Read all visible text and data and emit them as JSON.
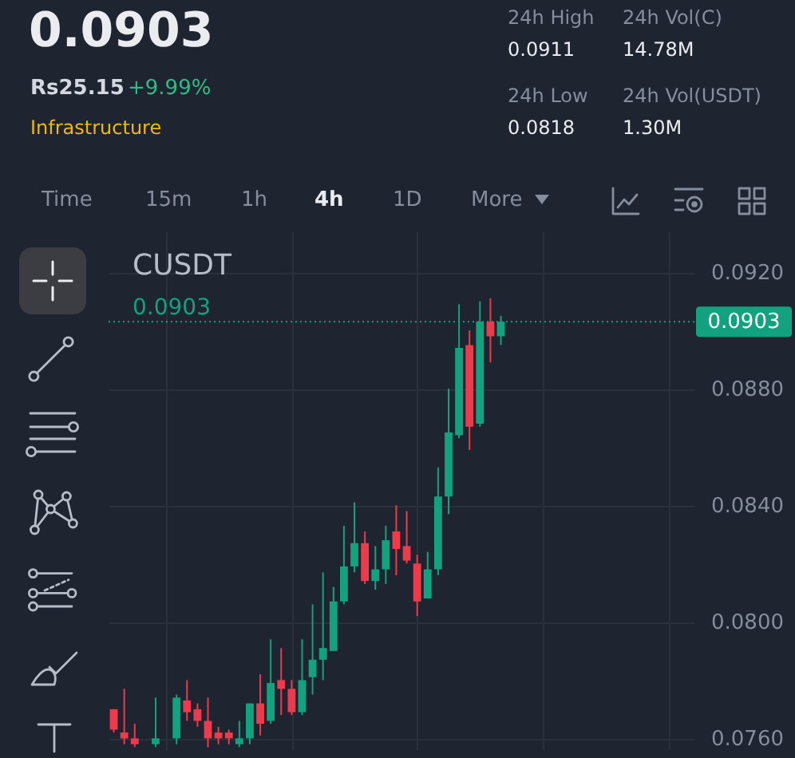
{
  "chart_data": [
    {
      "type": "other",
      "annotations": [
        "0.0903",
        "Rs25.15",
        "+9.99%",
        "Infrastructure",
        "24h High",
        "0.0911",
        "24h Vol(C)",
        "14.78M",
        "24h Low",
        "0.0818",
        "24h Vol(USDT)",
        "1.30M",
        "Time",
        "15m",
        "1h",
        "4h",
        "1D",
        "More"
      ]
    },
    {
      "type": "candlestick",
      "title": "CUSDT",
      "categories": [
        null,
        null,
        null,
        null,
        null,
        null,
        null,
        null,
        null,
        null,
        null,
        null,
        null,
        null,
        null,
        null,
        null,
        null,
        null,
        null,
        null,
        null,
        null,
        null,
        null,
        null,
        null,
        null,
        null,
        null,
        null,
        null,
        null,
        null,
        null,
        null,
        null,
        null,
        null,
        null,
        null,
        null,
        null,
        null,
        null,
        null,
        null,
        null,
        null,
        null,
        null,
        null,
        null,
        null,
        null,
        null
      ],
      "ohlc": [
        [
          0.077,
          0.077,
          0.0762,
          0.0763
        ],
        [
          0.0762,
          0.0777,
          0.0758,
          0.076
        ],
        [
          0.076,
          0.0765,
          0.0757,
          0.0758
        ],
        null,
        [
          0.0758,
          0.0774,
          0.0757,
          0.076
        ],
        null,
        [
          0.076,
          0.0775,
          0.0758,
          0.0774
        ],
        [
          0.0773,
          0.078,
          0.0766,
          0.0769
        ],
        [
          0.077,
          0.0772,
          0.0764,
          0.0766
        ],
        [
          0.0766,
          0.0774,
          0.0757,
          0.076
        ],
        [
          0.0762,
          0.0764,
          0.0758,
          0.076
        ],
        [
          0.0762,
          0.0763,
          0.0758,
          0.076
        ],
        [
          0.0758,
          0.0766,
          0.0757,
          0.076
        ],
        [
          0.076,
          0.0772,
          0.0758,
          0.0772
        ],
        [
          0.0772,
          0.0782,
          0.0761,
          0.0765
        ],
        [
          0.0766,
          0.0794,
          0.0765,
          0.0779
        ],
        [
          0.078,
          0.0791,
          0.0768,
          0.0777
        ],
        [
          0.0777,
          0.078,
          0.0768,
          0.0769
        ],
        [
          0.0769,
          0.0794,
          0.0768,
          0.078
        ],
        [
          0.0781,
          0.0806,
          0.0775,
          0.0787
        ],
        [
          0.0787,
          0.0817,
          0.078,
          0.0791
        ],
        [
          0.079,
          0.0812,
          0.079,
          0.0807
        ],
        [
          0.0807,
          0.0833,
          0.0806,
          0.0819
        ],
        [
          0.0819,
          0.0841,
          0.0817,
          0.0827
        ],
        [
          0.0827,
          0.0831,
          0.0813,
          0.0814
        ],
        [
          0.0814,
          0.0826,
          0.0811,
          0.0818
        ],
        [
          0.0818,
          0.0833,
          0.0813,
          0.0828
        ],
        [
          0.0831,
          0.084,
          0.0816,
          0.0825
        ],
        [
          0.0826,
          0.0838,
          0.082,
          0.0821
        ],
        [
          0.082,
          0.0823,
          0.0802,
          0.0807
        ],
        [
          0.0808,
          0.0824,
          0.0808,
          0.0818
        ],
        [
          0.0818,
          0.0853,
          0.0816,
          0.0843
        ],
        [
          0.0843,
          0.088,
          0.0837,
          0.0865
        ],
        [
          0.0864,
          0.0909,
          0.0863,
          0.0894
        ],
        [
          0.0895,
          0.09,
          0.0859,
          0.0867
        ],
        [
          0.0868,
          0.091,
          0.0867,
          0.0903
        ],
        [
          0.0903,
          0.0911,
          0.0889,
          0.0898
        ],
        [
          0.0898,
          0.0905,
          0.0895,
          0.0903
        ],
        null,
        null,
        null,
        null,
        null,
        null,
        null,
        null,
        null,
        null,
        null,
        null,
        null,
        null,
        null,
        null,
        null,
        null
      ],
      "colors": [
        "#ee3b4c",
        "#ee3b4c",
        "#ee3b4c",
        null,
        "#12a27f",
        null,
        "#12a27f",
        "#ee3b4c",
        "#ee3b4c",
        "#ee3b4c",
        "#ee3b4c",
        "#ee3b4c",
        "#12a27f",
        "#12a27f",
        "#ee3b4c",
        "#12a27f",
        "#ee3b4c",
        "#ee3b4c",
        "#12a27f",
        "#12a27f",
        "#12a27f",
        "#12a27f",
        "#12a27f",
        "#12a27f",
        "#ee3b4c",
        "#12a27f",
        "#12a27f",
        "#ee3b4c",
        "#ee3b4c",
        "#ee3b4c",
        "#12a27f",
        "#12a27f",
        "#12a27f",
        "#12a27f",
        "#ee3b4c",
        "#12a27f",
        "#ee3b4c",
        "#12a27f",
        null,
        null,
        null,
        null,
        null,
        null,
        null,
        null,
        null,
        null,
        null,
        null,
        null,
        null,
        null,
        null,
        null,
        null
      ],
      "ylim": [
        0.0756,
        0.0934
      ],
      "yticks": [
        {
          "value": 0.092,
          "label": "0.0920"
        },
        {
          "value": 0.088,
          "label": "0.0880"
        },
        {
          "value": 0.084,
          "label": "0.0840"
        },
        {
          "value": 0.08,
          "label": "0.0800"
        },
        {
          "value": 0.076,
          "label": "0.0760"
        }
      ],
      "grid": true,
      "tick_labels": "y",
      "ref_lines": [
        {
          "axis": "y",
          "value": 0.0903,
          "label": "0.0903",
          "color": "#12a27f",
          "line_style": "dotted"
        }
      ]
    }
  ]
}
